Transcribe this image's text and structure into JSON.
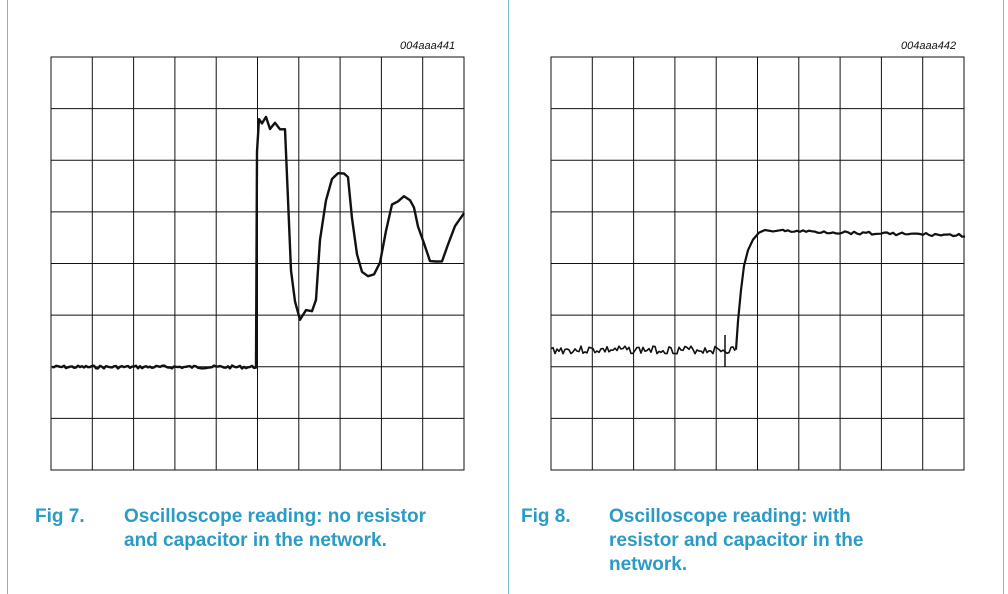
{
  "figures": [
    {
      "id_label": "004aaa441",
      "number": "Fig 7.",
      "caption": "Oscilloscope reading: no resistor and capacitor in the network.",
      "trace": "ringing step response"
    },
    {
      "id_label": "004aaa442",
      "number": "Fig 8.",
      "caption": "Oscilloscope reading: with resistor and capacitor in the network.",
      "trace": "damped step response"
    }
  ],
  "style": {
    "caption_color": "#2a9bc6",
    "frame_color": "#7fb8d4",
    "trace_color": "#111111"
  }
}
